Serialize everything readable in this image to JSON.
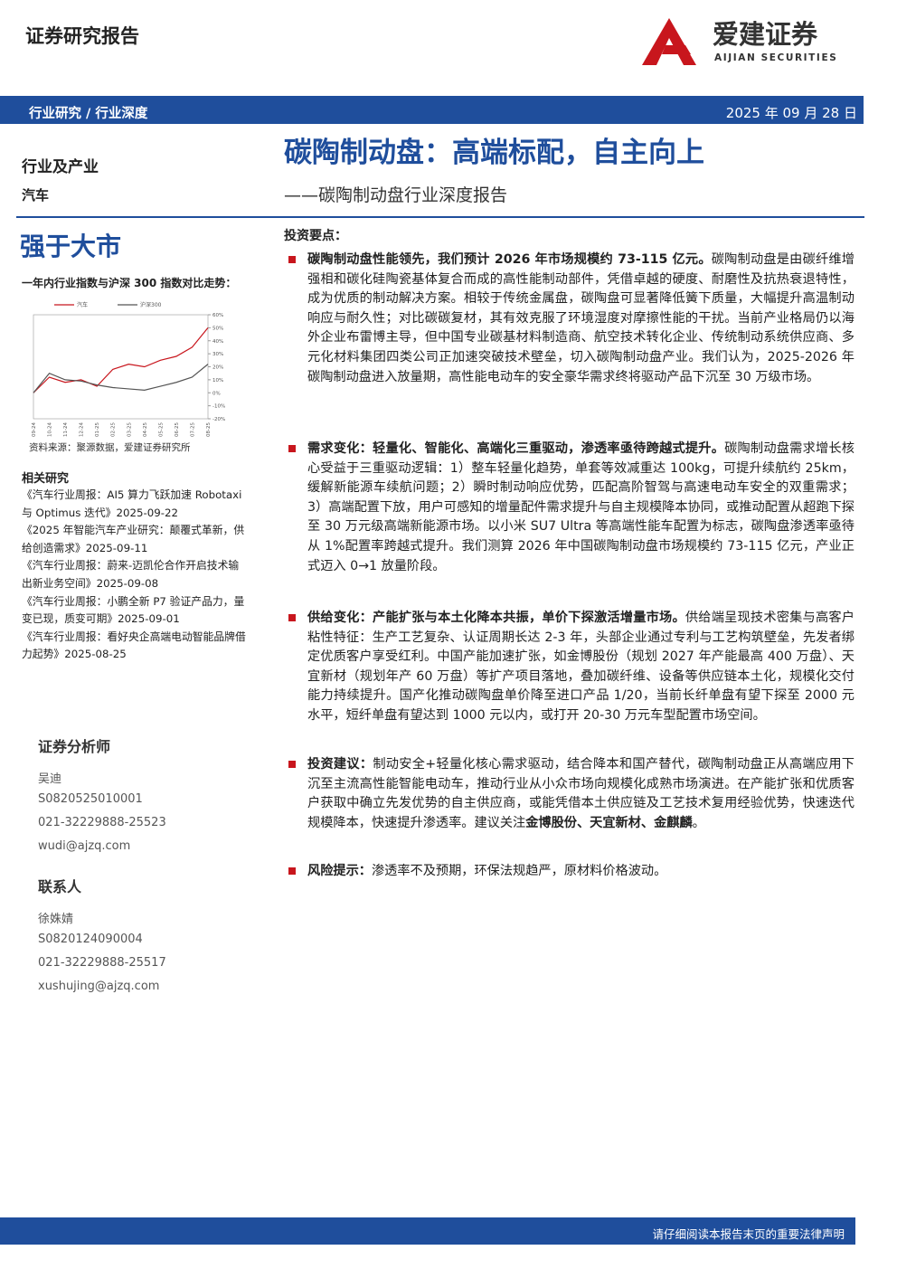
{
  "header": {
    "report_type": "证券研究报告",
    "logo_name": "爱建证券",
    "logo_en": "AIJIAN SECURITIES",
    "category": "行业研究 / 行业深度",
    "date": "2025 年 09 月 28 日"
  },
  "title": "碳陶制动盘：高端标配，自主向上",
  "subtitle": "——碳陶制动盘行业深度报告",
  "sidebar": {
    "sector_label": "行业及产业",
    "sector": "汽车",
    "rating": "强于大市",
    "chart_caption": "一年内行业指数与沪深 300 指数对比走势：",
    "chart": {
      "type": "line",
      "x": [
        "09-24",
        "10-24",
        "11-24",
        "12-24",
        "01-25",
        "02-25",
        "03-25",
        "04-25",
        "05-25",
        "06-25",
        "07-25",
        "08-25"
      ],
      "series": [
        {
          "name": "汽车",
          "color": "#c8161d",
          "values": [
            0,
            12,
            8,
            10,
            5,
            18,
            22,
            20,
            25,
            28,
            35,
            50
          ]
        },
        {
          "name": "沪深300",
          "color": "#555555",
          "values": [
            0,
            15,
            10,
            9,
            6,
            4,
            3,
            2,
            5,
            8,
            12,
            22
          ]
        }
      ],
      "ylim": [
        -20,
        60
      ],
      "yticks": [
        {
          "value": -20,
          "label": "-20%"
        },
        {
          "value": -10,
          "label": "-10%"
        },
        {
          "value": 0,
          "label": "0%"
        },
        {
          "value": 10,
          "label": "10%"
        },
        {
          "value": 20,
          "label": "20%"
        },
        {
          "value": 30,
          "label": "30%"
        },
        {
          "value": 40,
          "label": "40%"
        },
        {
          "value": 50,
          "label": "50%"
        },
        {
          "value": 60,
          "label": "60%"
        }
      ]
    },
    "source": "资料来源：聚源数据，爱建证券研究所",
    "related_title": "相关研究",
    "related": [
      "《汽车行业周报：AI5 算力飞跃加速 Robotaxi 与 Optimus 迭代》2025-09-22",
      "《2025 年智能汽车产业研究：颠覆式革新，供给创造需求》2025-09-11",
      "《汽车行业周报：蔚来-迈凯伦合作开启技术输出新业务空间》2025-09-08",
      "《汽车行业周报：小鹏全新 P7 验证产品力，量变已现，质变可期》2025-09-01",
      "《汽车行业周报：看好央企高端电动智能品牌借力起势》2025-08-25"
    ],
    "analyst_title": "证券分析师",
    "analyst": [
      "吴迪",
      "S0820525010001",
      "021-32229888-25523",
      "wudi@ajzq.com"
    ],
    "contact_title": "联系人",
    "contact": [
      "徐姝婧",
      "S0820124090004",
      "021-32229888-25517",
      "xushujing@ajzq.com"
    ]
  },
  "summary": {
    "heading": "投资要点：",
    "bullets": [
      {
        "parts": [
          {
            "text": "碳陶制动盘性能领先，我们预计 2026 年市场规模约 73-115 亿元。",
            "bold": true
          },
          {
            "text": "碳陶制动盘是由碳纤维增强相和碳化硅陶瓷基体复合而成的高性能制动部件，凭借卓越的硬度、耐磨性及抗热衰退特性，成为优质的制动解决方案。相较于传统金属盘，碳陶盘可显著降低簧下质量，大幅提升高温制动响应与耐久性；对比碳碳复材，其有效克服了环境湿度对摩擦性能的干扰。当前产业格局仍以海外企业布雷博主导，但中国专业碳基材料制造商、航空技术转化企业、传统制动系统供应商、多元化材料集团四类公司正加速突破技术壁垒，切入碳陶制动盘产业。我们认为，2025-2026 年碳陶制动盘进入放量期，高性能电动车的安全豪华需求终将驱动产品下沉至 30 万级市场。",
            "bold": false
          }
        ]
      },
      {
        "parts": [
          {
            "text": "需求变化：轻量化、智能化、高端化三重驱动，渗透率亟待跨越式提升。",
            "bold": true
          },
          {
            "text": "碳陶制动盘需求增长核心受益于三重驱动逻辑：1）整车轻量化趋势，单套等效减重达 100kg，可提升续航约 25km，缓解新能源车续航问题；2）瞬时制动响应优势，匹配高阶智驾与高速电动车安全的双重需求；3）高端配置下放，用户可感知的增量配件需求提升与自主规模降本协同，或推动配置从超跑下探至 30 万元级高端新能源市场。以小米 SU7 Ultra 等高端性能车配置为标志，碳陶盘渗透率亟待从 1%配置率跨越式提升。我们测算 2026 年中国碳陶制动盘市场规模约 73-115 亿元，产业正式迈入 0→1 放量阶段。",
            "bold": false
          }
        ]
      },
      {
        "parts": [
          {
            "text": "供给变化：产能扩张与本土化降本共振，单价下探激活增量市场。",
            "bold": true
          },
          {
            "text": "供给端呈现技术密集与高客户粘性特征：生产工艺复杂、认证周期长达 2-3 年，头部企业通过专利与工艺构筑壁垒，先发者绑定优质客户享受红利。中国产能加速扩张，如金博股份（规划 2027 年产能最高 400 万盘）、天宜新材（规划年产 60 万盘）等扩产项目落地，叠加碳纤维、设备等供应链本土化，规模化交付能力持续提升。国产化推动碳陶盘单价降至进口产品 1/20，当前长纤单盘有望下探至 2000 元水平，短纤单盘有望达到 1000 元以内，或打开 20-30 万元车型配置市场空间。",
            "bold": false
          }
        ]
      },
      {
        "parts": [
          {
            "text": "投资建议：",
            "bold": true
          },
          {
            "text": "制动安全+轻量化核心需求驱动，结合降本和国产替代，碳陶制动盘正从高端应用下沉至主流高性能智能电动车，推动行业从小众市场向规模化成熟市场演进。在产能扩张和优质客户获取中确立先发优势的自主供应商，或能凭借本土供应链及工艺技术复用经验优势，快速迭代规模降本，快速提升渗透率。建议关注",
            "bold": false
          },
          {
            "text": "金博股份、天宜新材、金麒麟",
            "bold": true
          },
          {
            "text": "。",
            "bold": false
          }
        ]
      },
      {
        "parts": [
          {
            "text": "风险提示：",
            "bold": true
          },
          {
            "text": "渗透率不及预期，环保法规趋严，原材料价格波动。",
            "bold": false
          }
        ]
      }
    ]
  },
  "footer": {
    "notice": "请仔细阅读本报告末页的重要法律声明"
  }
}
